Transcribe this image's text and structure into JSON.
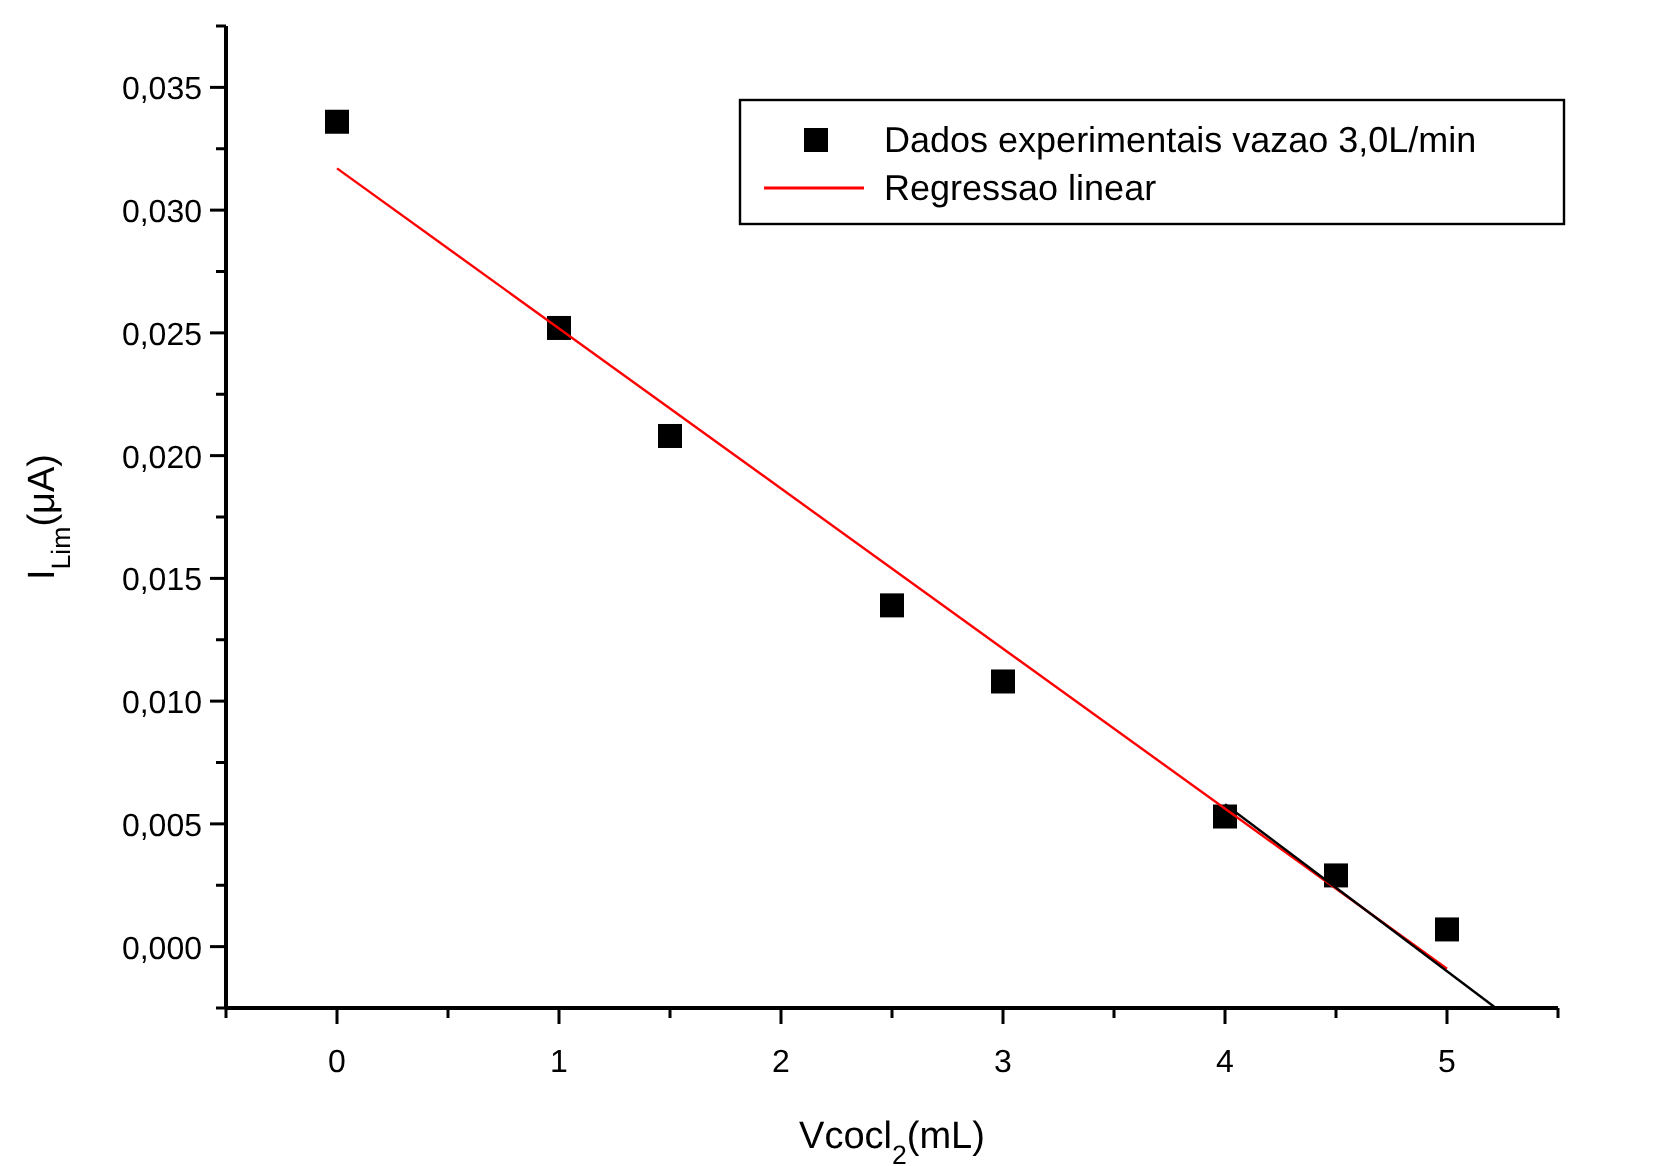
{
  "chart_data": {
    "type": "scatter",
    "xlabel": "Vcocl$_{2}$(mL)",
    "ylabel": "I$_{Lim}$(μA)",
    "xlim": [
      -0.5,
      5.5
    ],
    "xticks": [
      {
        "value": -0.5,
        "label": null
      },
      0,
      {
        "value": 0.5,
        "label": null
      },
      1,
      {
        "value": 1.5,
        "label": null
      },
      2,
      {
        "value": 2.5,
        "label": null
      },
      3,
      {
        "value": 3.5,
        "label": null
      },
      4,
      {
        "value": 4.5,
        "label": null
      },
      5,
      {
        "value": 5.5,
        "label": null
      }
    ],
    "ylim": [
      -0.0025,
      0.0375
    ],
    "yticks": [
      {
        "value": -0.0025,
        "label": null
      },
      {
        "value": 0,
        "label": "0,000"
      },
      {
        "value": 0.0025,
        "label": null
      },
      {
        "value": 0.005,
        "label": "0,005"
      },
      {
        "value": 0.0075,
        "label": null
      },
      {
        "value": 0.01,
        "label": "0,010"
      },
      {
        "value": 0.0125,
        "label": null
      },
      {
        "value": 0.015,
        "label": "0,015"
      },
      {
        "value": 0.0175,
        "label": null
      },
      {
        "value": 0.02,
        "label": "0,020"
      },
      {
        "value": 0.0225,
        "label": null
      },
      {
        "value": 0.025,
        "label": "0,025"
      },
      {
        "value": 0.0275,
        "label": null
      },
      {
        "value": 0.03,
        "label": "0,030"
      },
      {
        "value": 0.0325,
        "label": null
      },
      {
        "value": 0.035,
        "label": "0,035"
      },
      {
        "value": 0.0375,
        "label": null
      }
    ],
    "legend": "top right",
    "grid": false,
    "series": [
      {
        "name": "Dados experimentais vazao 3,0L/min",
        "marker": "square",
        "color": "#000000",
        "x": [
          0,
          1,
          1.5,
          2.5,
          3,
          4,
          4.5,
          5
        ],
        "values": [
          0.0336,
          0.0252,
          0.0208,
          0.0139,
          0.0108,
          0.0053,
          0.0029,
          0.0007
        ]
      },
      {
        "name": "Regressao linear",
        "type": "line",
        "marker": "none",
        "color": "#ff0000",
        "x": [
          0,
          5
        ],
        "values": [
          0.0317,
          -0.0009
        ]
      },
      {
        "type": "line",
        "marker": "none",
        "color": "#000000",
        "x": [
          4,
          5.22
        ],
        "values": [
          0.0058,
          -0.0025
        ]
      }
    ]
  }
}
